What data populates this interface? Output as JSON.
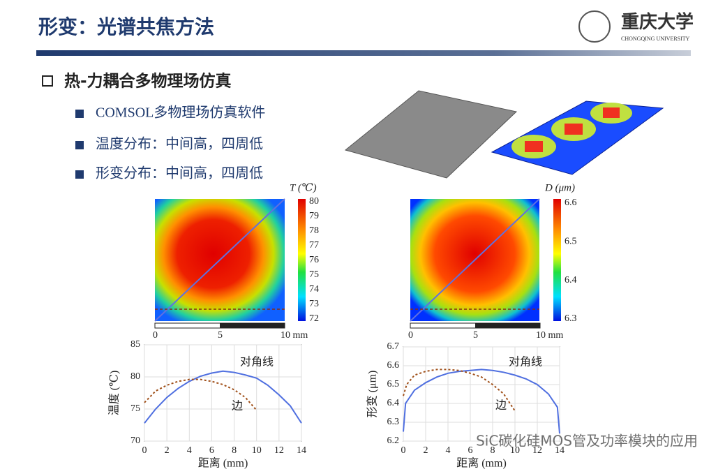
{
  "header": {
    "title": "形变：光谱共焦方法",
    "logo": "重庆大学",
    "logo_en": "CHONGQING UNIVERSITY"
  },
  "section": {
    "heading": "热-力耦合多物理场仿真",
    "bullets": [
      "COMSOL多物理场仿真软件",
      "温度分布：中间高，四周低",
      "形变分布：中间高，四周低"
    ]
  },
  "heatmaps": [
    {
      "label": "T (℃)",
      "ticks": [
        80,
        79,
        78,
        77,
        76,
        75,
        74,
        73,
        72
      ],
      "scale": [
        "0",
        "5",
        "10 mm"
      ]
    },
    {
      "label": "D (μm)",
      "ticks": [
        6.6,
        6.5,
        6.4,
        6.3
      ],
      "scale": [
        "0",
        "5",
        "10 mm"
      ]
    }
  ],
  "chart_data": [
    {
      "type": "line",
      "xlabel": "距离 (mm)",
      "ylabel": "温度 (℃)",
      "xlim": [
        0,
        14
      ],
      "ylim": [
        70,
        85
      ],
      "xticks": [
        0,
        2,
        4,
        6,
        8,
        10,
        12,
        14
      ],
      "yticks": [
        70,
        75,
        80,
        85
      ],
      "grid": true,
      "series": [
        {
          "name": "对角线",
          "color": "#4f6fe0",
          "dash": false,
          "x": [
            0,
            1,
            2,
            3,
            4,
            5,
            6,
            7,
            8,
            9,
            10,
            11,
            12,
            13,
            14
          ],
          "values": [
            72.8,
            75,
            76.8,
            78.2,
            79.3,
            80.1,
            80.6,
            80.9,
            80.7,
            80.3,
            79.8,
            78.7,
            77.2,
            75.5,
            72.8
          ]
        },
        {
          "name": "边",
          "color": "#a0501a",
          "dash": true,
          "x": [
            0,
            1,
            2,
            3,
            4,
            5,
            6,
            7,
            8,
            9,
            10
          ],
          "values": [
            76,
            77.8,
            78.7,
            79.3,
            79.6,
            79.6,
            79.3,
            78.8,
            78,
            76.8,
            74.8
          ]
        }
      ]
    },
    {
      "type": "line",
      "xlabel": "距离 (mm)",
      "ylabel": "形变 (μm)",
      "xlim": [
        0,
        14
      ],
      "ylim": [
        6.2,
        6.7
      ],
      "xticks": [
        0,
        2,
        4,
        6,
        8,
        10,
        12,
        14
      ],
      "yticks": [
        6.2,
        6.3,
        6.4,
        6.5,
        6.6,
        6.7
      ],
      "grid": true,
      "series": [
        {
          "name": "对角线",
          "color": "#4f6fe0",
          "dash": false,
          "x": [
            0,
            0.2,
            1,
            2,
            3,
            4,
            5,
            6,
            7,
            8,
            9,
            10,
            11,
            12,
            13,
            13.8,
            14
          ],
          "values": [
            6.25,
            6.4,
            6.47,
            6.51,
            6.54,
            6.56,
            6.57,
            6.575,
            6.58,
            6.575,
            6.565,
            6.55,
            6.53,
            6.5,
            6.45,
            6.38,
            6.24
          ]
        },
        {
          "name": "边",
          "color": "#a0501a",
          "dash": true,
          "x": [
            0,
            0.3,
            1,
            2,
            3,
            4,
            5,
            6,
            7,
            8,
            9,
            10
          ],
          "values": [
            6.44,
            6.5,
            6.55,
            6.57,
            6.58,
            6.58,
            6.575,
            6.56,
            6.54,
            6.5,
            6.45,
            6.36
          ]
        }
      ]
    }
  ],
  "watermark": "SiC碳化硅MOS管及功率模块的应用"
}
